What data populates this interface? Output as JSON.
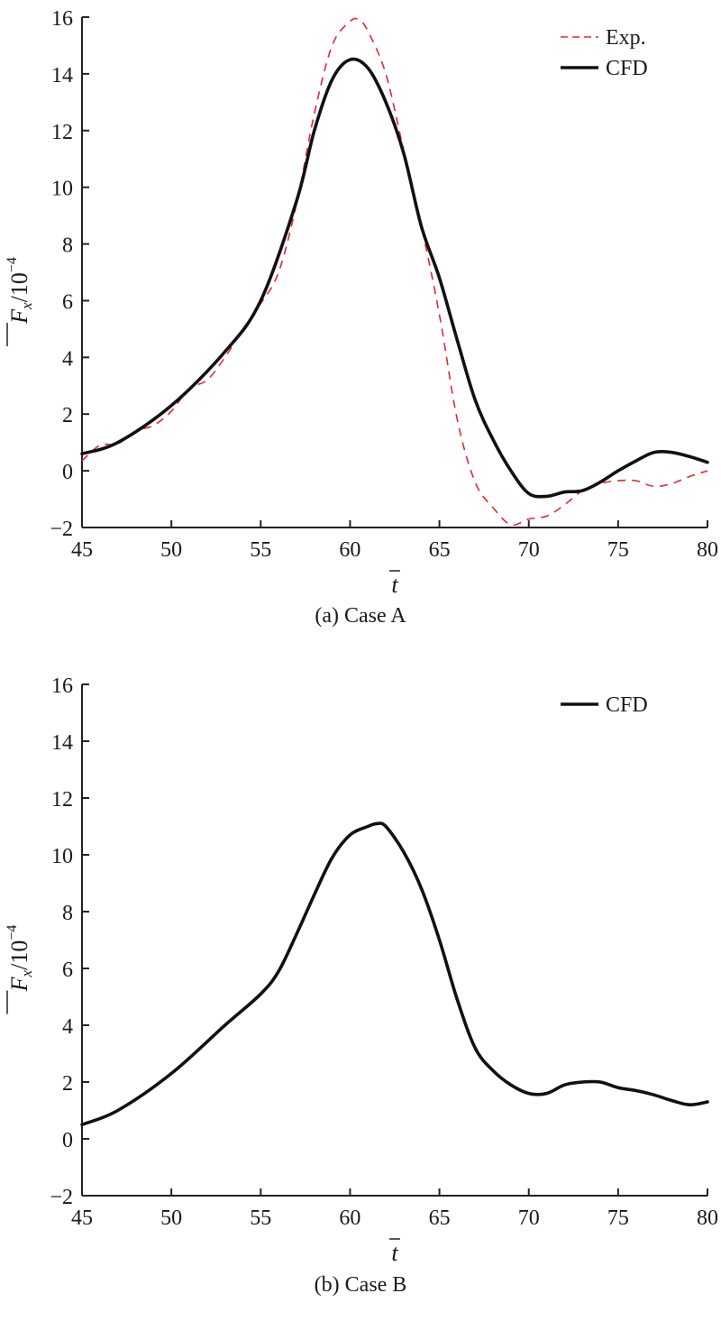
{
  "chart_data": [
    {
      "type": "line",
      "caption": "(a) Case A",
      "xlabel": "t",
      "ylabel": "Fx/10^-4",
      "ylabel_parts": {
        "var": "F",
        "sub": "x",
        "sep": "/10",
        "exp": "−4"
      },
      "xlim": [
        45,
        80
      ],
      "ylim": [
        -2,
        16
      ],
      "xticks": [
        "45",
        "50",
        "55",
        "60",
        "65",
        "70",
        "75",
        "80"
      ],
      "yticks": [
        "−2",
        "0",
        "2",
        "4",
        "6",
        "8",
        "10",
        "12",
        "14",
        "16"
      ],
      "grid": false,
      "legend_position": "top-right",
      "series": [
        {
          "name": "Exp.",
          "color": "#e8262b",
          "style": "dashed",
          "x": [
            45,
            46,
            47,
            48,
            49,
            50,
            51,
            52,
            53,
            54,
            55,
            56,
            57,
            58,
            59,
            60,
            60.5,
            61,
            62,
            63,
            64,
            65,
            66,
            67,
            68,
            69,
            70,
            71,
            72,
            73,
            74,
            75,
            76,
            77,
            78,
            79,
            80
          ],
          "y": [
            0.35,
            0.9,
            0.95,
            1.4,
            1.6,
            2.1,
            2.9,
            3.2,
            4.0,
            5.0,
            5.9,
            7.0,
            9.4,
            12.6,
            15.0,
            15.85,
            15.9,
            15.5,
            14.0,
            11.3,
            8.6,
            5.5,
            1.8,
            -0.4,
            -1.3,
            -1.9,
            -1.7,
            -1.6,
            -1.2,
            -0.7,
            -0.45,
            -0.35,
            -0.35,
            -0.55,
            -0.45,
            -0.2,
            0.0
          ]
        },
        {
          "name": "CFD",
          "color": "#111111",
          "style": "solid",
          "x": [
            45,
            47,
            50,
            53,
            55,
            57,
            58,
            59,
            60,
            61,
            62,
            63,
            64,
            65,
            66,
            67,
            68,
            69,
            70,
            71,
            72,
            73,
            74,
            75,
            76,
            77,
            78,
            79,
            80
          ],
          "y": [
            0.6,
            1.0,
            2.3,
            4.2,
            6.0,
            9.5,
            12.0,
            13.8,
            14.5,
            14.2,
            13.0,
            11.2,
            8.6,
            6.8,
            4.6,
            2.5,
            1.1,
            0.0,
            -0.8,
            -0.9,
            -0.75,
            -0.7,
            -0.4,
            0.0,
            0.35,
            0.65,
            0.65,
            0.5,
            0.3
          ]
        }
      ]
    },
    {
      "type": "line",
      "caption": "(b) Case B",
      "xlabel": "t",
      "ylabel": "Fx/10^-4",
      "ylabel_parts": {
        "var": "F",
        "sub": "x",
        "sep": "/10",
        "exp": "−4"
      },
      "xlim": [
        45,
        80
      ],
      "ylim": [
        -2,
        16
      ],
      "xticks": [
        "45",
        "50",
        "55",
        "60",
        "65",
        "70",
        "75",
        "80"
      ],
      "yticks": [
        "−2",
        "0",
        "2",
        "4",
        "6",
        "8",
        "10",
        "12",
        "14",
        "16"
      ],
      "grid": false,
      "legend_position": "top-right",
      "series": [
        {
          "name": "CFD",
          "color": "#111111",
          "style": "solid",
          "x": [
            45,
            47,
            50,
            53,
            55,
            56,
            57,
            58,
            59,
            60,
            61,
            61.5,
            62,
            63,
            64,
            65,
            66,
            67,
            68,
            69,
            70,
            71,
            72,
            73,
            74,
            75,
            76,
            77,
            78,
            79,
            80
          ],
          "y": [
            0.5,
            1.0,
            2.3,
            4.0,
            5.1,
            5.9,
            7.2,
            8.6,
            9.9,
            10.7,
            11.0,
            11.1,
            11.0,
            10.1,
            8.8,
            7.0,
            4.9,
            3.2,
            2.4,
            1.9,
            1.6,
            1.6,
            1.9,
            2.0,
            2.0,
            1.8,
            1.7,
            1.55,
            1.35,
            1.2,
            1.3
          ]
        }
      ]
    }
  ]
}
